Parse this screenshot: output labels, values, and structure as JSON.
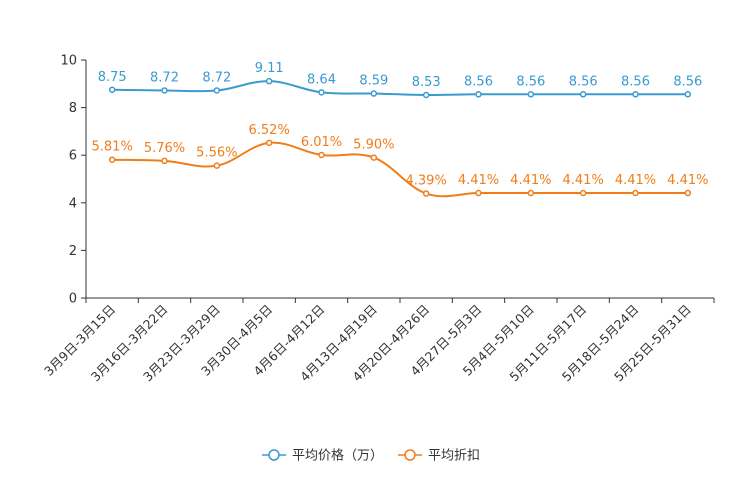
{
  "chart_data": {
    "type": "line",
    "title": "",
    "xlabel": "",
    "ylabel": "",
    "ylim": [
      0,
      10
    ],
    "yticks": [
      0,
      2,
      4,
      6,
      8,
      10
    ],
    "grid": false,
    "legend_position": "bottom-center",
    "categories": [
      "3月9日-3月15日",
      "3月16日-3月22日",
      "3月23日-3月29日",
      "3月30日-4月5日",
      "4月6日-4月12日",
      "4月13日-4月19日",
      "4月20日-4月26日",
      "4月27日-5月3日",
      "5月4日-5月10日",
      "5月11日-5月17日",
      "5月18日-5月24日",
      "5月25日-5月31日"
    ],
    "series": [
      {
        "name": "平均价格（万）",
        "color": "#3a9bd0",
        "values": [
          8.75,
          8.72,
          8.72,
          9.11,
          8.64,
          8.59,
          8.53,
          8.56,
          8.56,
          8.56,
          8.56,
          8.56
        ],
        "labels": [
          "8.75",
          "8.72",
          "8.72",
          "9.11",
          "8.64",
          "8.59",
          "8.53",
          "8.56",
          "8.56",
          "8.56",
          "8.56",
          "8.56"
        ]
      },
      {
        "name": "平均折扣",
        "color": "#f07d1a",
        "values": [
          5.81,
          5.76,
          5.56,
          6.52,
          6.01,
          5.9,
          4.39,
          4.41,
          4.41,
          4.41,
          4.41,
          4.41
        ],
        "labels": [
          "5.81%",
          "5.76%",
          "5.56%",
          "6.52%",
          "6.01%",
          "5.90%",
          "4.39%",
          "4.41%",
          "4.41%",
          "4.41%",
          "4.41%",
          "4.41%"
        ]
      }
    ]
  }
}
